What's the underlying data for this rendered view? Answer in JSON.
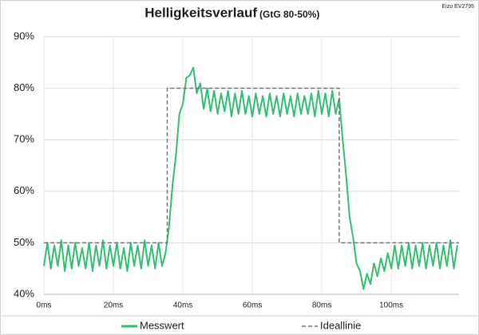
{
  "chart_data": {
    "type": "line",
    "title": "Helligkeitsverlauf",
    "subtitle": "(GtG 80-50%)",
    "annotation": "Eizo EV2795",
    "xlim": [
      0,
      119.5
    ],
    "ylim": [
      40,
      90
    ],
    "xticks": [
      {
        "value": 0,
        "label": "0ms"
      },
      {
        "value": 20,
        "label": "20ms"
      },
      {
        "value": 40,
        "label": "40ms"
      },
      {
        "value": 60,
        "label": "60ms"
      },
      {
        "value": 80,
        "label": "80ms"
      },
      {
        "value": 100,
        "label": "100ms"
      }
    ],
    "yticks": [
      {
        "value": 40,
        "label": "40%"
      },
      {
        "value": 50,
        "label": "50%"
      },
      {
        "value": 60,
        "label": "60%"
      },
      {
        "value": 70,
        "label": "70%"
      },
      {
        "value": 80,
        "label": "80%"
      },
      {
        "value": 90,
        "label": "90%"
      }
    ],
    "grid": true,
    "series": [
      {
        "name": "Messwert",
        "color": "#33c070",
        "dash": false,
        "x": [
          0,
          1,
          2,
          3,
          4,
          5,
          6,
          7,
          8,
          9,
          10,
          11,
          12,
          13,
          14,
          15,
          16,
          17,
          18,
          19,
          20,
          21,
          22,
          23,
          24,
          25,
          26,
          27,
          28,
          29,
          30,
          31,
          32,
          33,
          34,
          35,
          36,
          37,
          38,
          39,
          40,
          41,
          42,
          43,
          44,
          45,
          46,
          47,
          48,
          49,
          50,
          51,
          52,
          53,
          54,
          55,
          56,
          57,
          58,
          59,
          60,
          61,
          62,
          63,
          64,
          65,
          66,
          67,
          68,
          69,
          70,
          71,
          72,
          73,
          74,
          75,
          76,
          77,
          78,
          79,
          80,
          81,
          82,
          83,
          84,
          85,
          86,
          87,
          88,
          89,
          90,
          91,
          92,
          93,
          94,
          95,
          96,
          97,
          98,
          99,
          100,
          101,
          102,
          103,
          104,
          105,
          106,
          107,
          108,
          109,
          110,
          111,
          112,
          113,
          114,
          115,
          116,
          117,
          118,
          119
        ],
        "values": [
          45.5,
          50,
          45,
          49.5,
          45.5,
          50.5,
          44.5,
          49.5,
          45,
          50,
          45.5,
          49,
          45,
          50,
          44.5,
          49.5,
          45.5,
          50.5,
          45,
          49.5,
          45.5,
          50,
          45,
          49,
          44.5,
          50,
          45.5,
          49.5,
          45,
          50.5,
          45.5,
          49.5,
          45,
          50,
          45.5,
          48,
          53,
          61,
          67,
          75,
          77,
          82,
          82.5,
          84,
          79,
          81,
          76,
          80,
          75.5,
          79.5,
          75,
          79,
          75.5,
          79.5,
          74.5,
          79,
          75,
          79.5,
          75,
          78.5,
          74.5,
          79,
          75,
          78.5,
          74.5,
          79,
          75,
          78.5,
          74.5,
          79,
          75,
          78.5,
          74.5,
          79,
          75,
          78.5,
          75,
          79,
          74.5,
          79.5,
          75,
          79,
          74.5,
          79.5,
          75,
          78,
          70,
          63,
          55,
          51,
          46,
          44.5,
          41,
          44,
          42,
          46,
          43.5,
          47,
          44.5,
          48,
          45,
          49.5,
          45,
          49.5,
          45.5,
          50,
          45,
          49.5,
          45.5,
          50,
          45,
          49.5,
          45.5,
          50,
          45,
          49.5,
          45.5,
          50.5,
          45,
          49.5
        ]
      },
      {
        "name": "Ideallinie",
        "color": "#777777",
        "dash": true,
        "x": [
          0,
          35.5,
          35.5,
          85,
          85,
          119.5
        ],
        "values": [
          50,
          50,
          80,
          80,
          50,
          50
        ]
      }
    ]
  }
}
